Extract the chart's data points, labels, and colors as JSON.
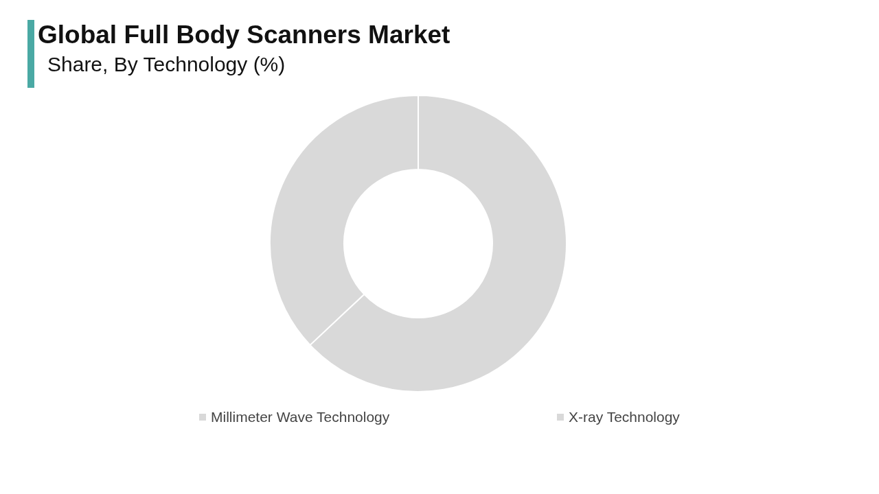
{
  "chart_data": {
    "type": "donut",
    "title": "Global Full Body Scanners Market",
    "subtitle": "Share, By Technology (%)",
    "categories": [
      "Millimeter Wave Technology",
      "X-ray Technology"
    ],
    "values": [
      63,
      37
    ],
    "colors": [
      "#d9d9d9",
      "#d9d9d9"
    ],
    "legend": "bottom"
  }
}
